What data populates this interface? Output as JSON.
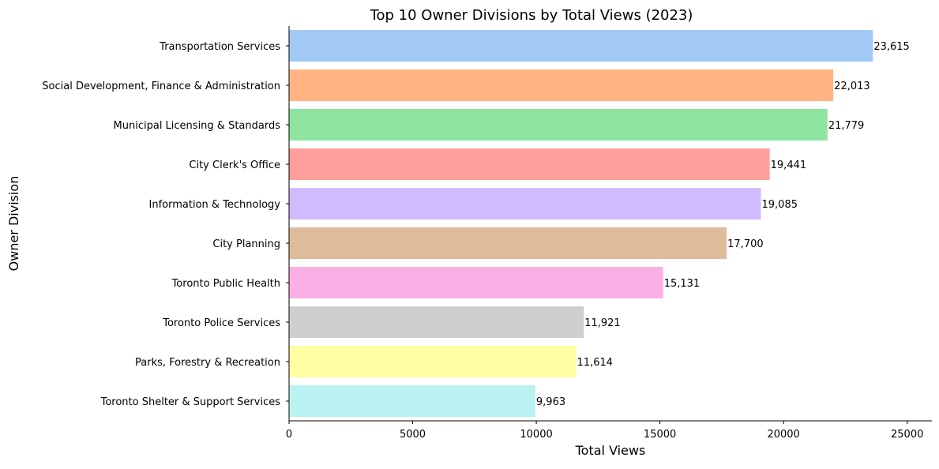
{
  "chart_data": {
    "type": "bar",
    "orientation": "horizontal",
    "title": "Top 10 Owner Divisions by Total Views (2023)",
    "xlabel": "Total Views",
    "ylabel": "Owner Division",
    "xlim": [
      0,
      26000
    ],
    "xticks": [
      0,
      5000,
      10000,
      15000,
      20000,
      25000
    ],
    "xtick_labels": [
      "0",
      "5000",
      "10000",
      "15000",
      "20000",
      "25000"
    ],
    "grid": false,
    "legend": "none",
    "categories": [
      "Transportation Services",
      "Social Development, Finance & Administration",
      "Municipal Licensing & Standards",
      "City Clerk's Office",
      "Information & Technology",
      "City Planning",
      "Toronto Public Health",
      "Toronto Police Services",
      "Parks, Forestry & Recreation",
      "Toronto Shelter & Support Services"
    ],
    "values": [
      23615,
      22013,
      21779,
      19441,
      19085,
      17700,
      15131,
      11921,
      11614,
      9963
    ],
    "data_labels": [
      "23,615",
      "22,013",
      "21,779",
      "19,441",
      "19,085",
      "17,700",
      "15,131",
      "11,921",
      "11,614",
      "9,963"
    ],
    "colors": [
      "#a1c9f4",
      "#ffb482",
      "#8de5a1",
      "#ff9f9b",
      "#d0bbff",
      "#debb9b",
      "#fab0e4",
      "#cfcfcf",
      "#fffea3",
      "#b9f2f0"
    ]
  }
}
